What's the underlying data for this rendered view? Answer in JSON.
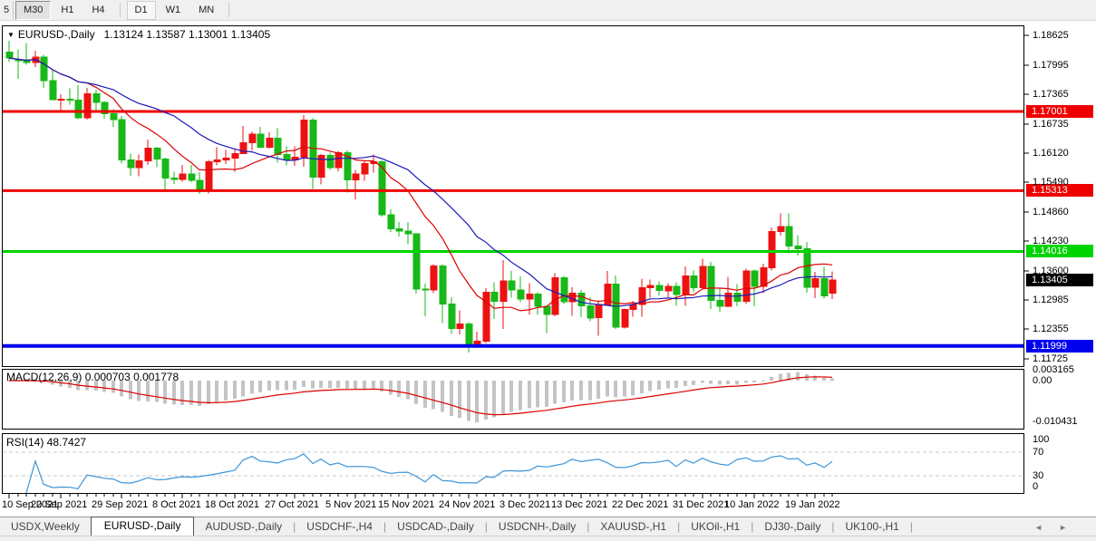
{
  "icons": {
    "dropdown": "▼",
    "tab_scroll_left": "◄",
    "tab_scroll_right": "►"
  },
  "toolbar": {
    "buttons": [
      "5",
      "M30",
      "H1",
      "H4",
      "D1",
      "W1",
      "MN"
    ]
  },
  "chart": {
    "title_symbol": "EURUSD-,Daily",
    "title_ohlc": "1.13124 1.13587 1.13001 1.13405"
  },
  "indicators": {
    "macd_label": "MACD(12,26,9) 0.000703 0.001778",
    "rsi_label": "RSI(14) 48.7427"
  },
  "tabs": {
    "items": [
      "USDX,Weekly",
      "EURUSD-,Daily",
      "AUDUSD-,Daily",
      "USDCHF-,H4",
      "USDCAD-,Daily",
      "USDCNH-,Daily",
      "XAUUSD-,H1",
      "UKOil-,H1",
      "DJ30-,Daily",
      "UK100-,H1"
    ],
    "active": "EURUSD-,Daily"
  },
  "chart_data": {
    "type": "candlestick",
    "title": "EURUSD-,Daily",
    "last_bar_ohlc": {
      "open": 1.13124,
      "high": 1.13587,
      "low": 1.13001,
      "close": 1.13405
    },
    "columns": [
      "date",
      "open",
      "high",
      "low",
      "close"
    ],
    "candles": [
      [
        "10 Sep 2021",
        1.1827,
        1.1851,
        1.1805,
        1.1814
      ],
      [
        "13 Sep 2021",
        1.181,
        1.1833,
        1.177,
        1.1809
      ],
      [
        "14 Sep 2021",
        1.1809,
        1.1846,
        1.18,
        1.1805
      ],
      [
        "15 Sep 2021",
        1.1805,
        1.183,
        1.1795,
        1.1816
      ],
      [
        "16 Sep 2021",
        1.1816,
        1.1821,
        1.175,
        1.1766
      ],
      [
        "17 Sep 2021",
        1.1766,
        1.1788,
        1.1724,
        1.1725
      ],
      [
        "20 Sep 2021",
        1.1725,
        1.1737,
        1.17,
        1.1726
      ],
      [
        "21 Sep 2021",
        1.1726,
        1.1749,
        1.1715,
        1.1724
      ],
      [
        "22 Sep 2021",
        1.1724,
        1.1756,
        1.1684,
        1.1687
      ],
      [
        "23 Sep 2021",
        1.1687,
        1.175,
        1.1683,
        1.1738
      ],
      [
        "24 Sep 2021",
        1.1738,
        1.1747,
        1.1701,
        1.1719
      ],
      [
        "27 Sep 2021",
        1.1719,
        1.1722,
        1.1685,
        1.1695
      ],
      [
        "28 Sep 2021",
        1.1695,
        1.1705,
        1.1667,
        1.1683
      ],
      [
        "29 Sep 2021",
        1.1683,
        1.169,
        1.1589,
        1.1597
      ],
      [
        "30 Sep 2021",
        1.1597,
        1.161,
        1.1563,
        1.158
      ],
      [
        "1 Oct 2021",
        1.158,
        1.1608,
        1.1562,
        1.1595
      ],
      [
        "4 Oct 2021",
        1.1595,
        1.164,
        1.1586,
        1.1622
      ],
      [
        "5 Oct 2021",
        1.1622,
        1.1625,
        1.1581,
        1.1599
      ],
      [
        "6 Oct 2021",
        1.1599,
        1.1602,
        1.1529,
        1.1558
      ],
      [
        "7 Oct 2021",
        1.1558,
        1.1572,
        1.1546,
        1.1555
      ],
      [
        "8 Oct 2021",
        1.1555,
        1.1586,
        1.155,
        1.1567
      ],
      [
        "11 Oct 2021",
        1.1567,
        1.1586,
        1.1549,
        1.1553
      ],
      [
        "12 Oct 2021",
        1.1553,
        1.1571,
        1.1524,
        1.153
      ],
      [
        "13 Oct 2021",
        1.153,
        1.1597,
        1.1525,
        1.1593
      ],
      [
        "14 Oct 2021",
        1.1593,
        1.1624,
        1.1585,
        1.1597
      ],
      [
        "15 Oct 2021",
        1.1597,
        1.1618,
        1.1588,
        1.1601
      ],
      [
        "18 Oct 2021",
        1.1601,
        1.1621,
        1.1572,
        1.161
      ],
      [
        "19 Oct 2021",
        1.161,
        1.1669,
        1.1609,
        1.1633
      ],
      [
        "20 Oct 2021",
        1.1633,
        1.1658,
        1.1617,
        1.1652
      ],
      [
        "21 Oct 2021",
        1.1652,
        1.1667,
        1.1622,
        1.1624
      ],
      [
        "22 Oct 2021",
        1.1624,
        1.1656,
        1.1621,
        1.1643
      ],
      [
        "25 Oct 2021",
        1.1643,
        1.1664,
        1.1591,
        1.1608
      ],
      [
        "26 Oct 2021",
        1.1608,
        1.1626,
        1.1585,
        1.1597
      ],
      [
        "27 Oct 2021",
        1.1597,
        1.1626,
        1.1584,
        1.1603
      ],
      [
        "28 Oct 2021",
        1.1603,
        1.1692,
        1.1582,
        1.1682
      ],
      [
        "29 Oct 2021",
        1.1682,
        1.1686,
        1.1535,
        1.156
      ],
      [
        "1 Nov 2021",
        1.156,
        1.1609,
        1.1545,
        1.1606
      ],
      [
        "2 Nov 2021",
        1.1606,
        1.1612,
        1.1575,
        1.158
      ],
      [
        "3 Nov 2021",
        1.158,
        1.1616,
        1.1573,
        1.1612
      ],
      [
        "4 Nov 2021",
        1.1612,
        1.1617,
        1.1527,
        1.1554
      ],
      [
        "5 Nov 2021",
        1.1554,
        1.1575,
        1.1513,
        1.1567
      ],
      [
        "8 Nov 2021",
        1.1567,
        1.1595,
        1.1552,
        1.1589
      ],
      [
        "9 Nov 2021",
        1.1589,
        1.1608,
        1.157,
        1.1593
      ],
      [
        "10 Nov 2021",
        1.1593,
        1.1596,
        1.1476,
        1.148
      ],
      [
        "11 Nov 2021",
        1.148,
        1.1491,
        1.1443,
        1.145
      ],
      [
        "12 Nov 2021",
        1.145,
        1.1464,
        1.1433,
        1.1445
      ],
      [
        "15 Nov 2021",
        1.1445,
        1.1464,
        1.1417,
        1.1439
      ],
      [
        "16 Nov 2021",
        1.1439,
        1.144,
        1.1312,
        1.1321
      ],
      [
        "17 Nov 2021",
        1.1321,
        1.1333,
        1.1263,
        1.1319
      ],
      [
        "18 Nov 2021",
        1.1319,
        1.1374,
        1.1313,
        1.1371
      ],
      [
        "19 Nov 2021",
        1.1371,
        1.1374,
        1.1249,
        1.1289
      ],
      [
        "22 Nov 2021",
        1.1289,
        1.1304,
        1.1226,
        1.1237
      ],
      [
        "23 Nov 2021",
        1.1237,
        1.1276,
        1.1225,
        1.1247
      ],
      [
        "24 Nov 2021",
        1.1247,
        1.1251,
        1.1186,
        1.12
      ],
      [
        "25 Nov 2021",
        1.12,
        1.123,
        1.1196,
        1.121
      ],
      [
        "26 Nov 2021",
        1.121,
        1.1323,
        1.1206,
        1.1315
      ],
      [
        "29 Nov 2021",
        1.1315,
        1.1336,
        1.1258,
        1.1295
      ],
      [
        "30 Nov 2021",
        1.1295,
        1.1383,
        1.1236,
        1.1339
      ],
      [
        "1 Dec 2021",
        1.1339,
        1.136,
        1.1303,
        1.1319
      ],
      [
        "2 Dec 2021",
        1.1319,
        1.1348,
        1.1293,
        1.13
      ],
      [
        "3 Dec 2021",
        1.13,
        1.1334,
        1.1267,
        1.1311
      ],
      [
        "6 Dec 2021",
        1.1311,
        1.1315,
        1.1266,
        1.1285
      ],
      [
        "7 Dec 2021",
        1.1285,
        1.1285,
        1.1228,
        1.1267
      ],
      [
        "8 Dec 2021",
        1.1267,
        1.1355,
        1.1263,
        1.1345
      ],
      [
        "9 Dec 2021",
        1.1345,
        1.1349,
        1.1289,
        1.1294
      ],
      [
        "10 Dec 2021",
        1.1294,
        1.1325,
        1.1264,
        1.1313
      ],
      [
        "13 Dec 2021",
        1.1313,
        1.1319,
        1.1261,
        1.1286
      ],
      [
        "14 Dec 2021",
        1.1286,
        1.1304,
        1.1253,
        1.126
      ],
      [
        "15 Dec 2021",
        1.126,
        1.1297,
        1.1222,
        1.1288
      ],
      [
        "16 Dec 2021",
        1.1288,
        1.136,
        1.1287,
        1.1332
      ],
      [
        "17 Dec 2021",
        1.1332,
        1.135,
        1.1236,
        1.124
      ],
      [
        "20 Dec 2021",
        1.124,
        1.128,
        1.1237,
        1.1278
      ],
      [
        "21 Dec 2021",
        1.1278,
        1.1296,
        1.1262,
        1.1288
      ],
      [
        "22 Dec 2021",
        1.1288,
        1.1344,
        1.1262,
        1.1324
      ],
      [
        "23 Dec 2021",
        1.1324,
        1.1342,
        1.1303,
        1.1329
      ],
      [
        "24 Dec 2021",
        1.1329,
        1.1338,
        1.1308,
        1.1318
      ],
      [
        "27 Dec 2021",
        1.1318,
        1.1334,
        1.1304,
        1.1327
      ],
      [
        "28 Dec 2021",
        1.1327,
        1.1336,
        1.1286,
        1.131
      ],
      [
        "29 Dec 2021",
        1.131,
        1.137,
        1.1286,
        1.1349
      ],
      [
        "30 Dec 2021",
        1.1349,
        1.1361,
        1.1315,
        1.1324
      ],
      [
        "31 Dec 2021",
        1.1324,
        1.1386,
        1.132,
        1.137
      ],
      [
        "3 Jan 2022",
        1.137,
        1.1379,
        1.1279,
        1.1297
      ],
      [
        "4 Jan 2022",
        1.1297,
        1.1323,
        1.1272,
        1.1285
      ],
      [
        "5 Jan 2022",
        1.1285,
        1.1347,
        1.1283,
        1.1313
      ],
      [
        "6 Jan 2022",
        1.1313,
        1.1332,
        1.1285,
        1.1295
      ],
      [
        "7 Jan 2022",
        1.1295,
        1.1365,
        1.1289,
        1.136
      ],
      [
        "10 Jan 2022",
        1.136,
        1.1363,
        1.1285,
        1.1327
      ],
      [
        "11 Jan 2022",
        1.1327,
        1.1375,
        1.1313,
        1.1367
      ],
      [
        "12 Jan 2022",
        1.1367,
        1.1453,
        1.1361,
        1.1444
      ],
      [
        "13 Jan 2022",
        1.1444,
        1.1483,
        1.1435,
        1.1455
      ],
      [
        "14 Jan 2022",
        1.1455,
        1.1483,
        1.1398,
        1.1413
      ],
      [
        "17 Jan 2022",
        1.1413,
        1.1436,
        1.1393,
        1.1407
      ],
      [
        "18 Jan 2022",
        1.1407,
        1.1422,
        1.1314,
        1.1325
      ],
      [
        "19 Jan 2022",
        1.1325,
        1.1358,
        1.1302,
        1.1344
      ],
      [
        "20 Jan 2022",
        1.1344,
        1.1369,
        1.1301,
        1.1307
      ],
      [
        "21 Jan 2022",
        1.13124,
        1.13587,
        1.13001,
        1.13405
      ]
    ],
    "colors": {
      "up": "#ee1111",
      "down": "#17b817"
    },
    "overlays": [
      {
        "name": "ma-fast",
        "type": "sma",
        "period": 10,
        "color": "#dd0000"
      },
      {
        "name": "ma-slow",
        "type": "sma",
        "period": 20,
        "color": "#1a1ab8"
      }
    ],
    "hlines": [
      {
        "price": 1.17001,
        "label": "1.17001",
        "color": "#ee0000",
        "width": 3
      },
      {
        "price": 1.15313,
        "label": "1.15313",
        "color": "#ee0000",
        "width": 3
      },
      {
        "price": 1.14016,
        "label": "1.14016",
        "color": "#00d400",
        "width": 3
      },
      {
        "price": 1.11999,
        "label": "1.11999",
        "color": "#0000ee",
        "width": 4
      }
    ],
    "current_price": {
      "value": 1.13405,
      "label": "1.13405",
      "badge_color": "#000000"
    },
    "price_axis_labels": [
      "1.18625",
      "1.17995",
      "1.17365",
      "1.16735",
      "1.16120",
      "1.15490",
      "1.14860",
      "1.14230",
      "1.13600",
      "1.12985",
      "1.12355",
      "1.11725"
    ],
    "x_ticks": {
      "indices": [
        0,
        6,
        13,
        20,
        26,
        33,
        40,
        46,
        53,
        60,
        66,
        73,
        80,
        86,
        93
      ],
      "labels": [
        "10 Sep 2021",
        "20 Sep 2021",
        "29 Sep 2021",
        "8 Oct 2021",
        "18 Oct 2021",
        "27 Oct 2021",
        "5 Nov 2021",
        "15 Nov 2021",
        "24 Nov 2021",
        "3 Dec 2021",
        "13 Dec 2021",
        "22 Dec 2021",
        "31 Dec 2021",
        "10 Jan 2022",
        "19 Jan 2022"
      ]
    },
    "macd": {
      "params": [
        12,
        26,
        9
      ],
      "value": 0.000703,
      "signal_value": 0.001778,
      "axis_labels": [
        "0.003165",
        "0.00",
        "-0.010431"
      ],
      "hist_color": "#c4c4c4",
      "signal_color": "#dd0000"
    },
    "rsi": {
      "period": 14,
      "value": 48.7427,
      "axis_labels": [
        "100",
        "70",
        "30",
        "0"
      ],
      "levels": [
        70,
        30
      ],
      "color": "#3d95d8"
    }
  }
}
